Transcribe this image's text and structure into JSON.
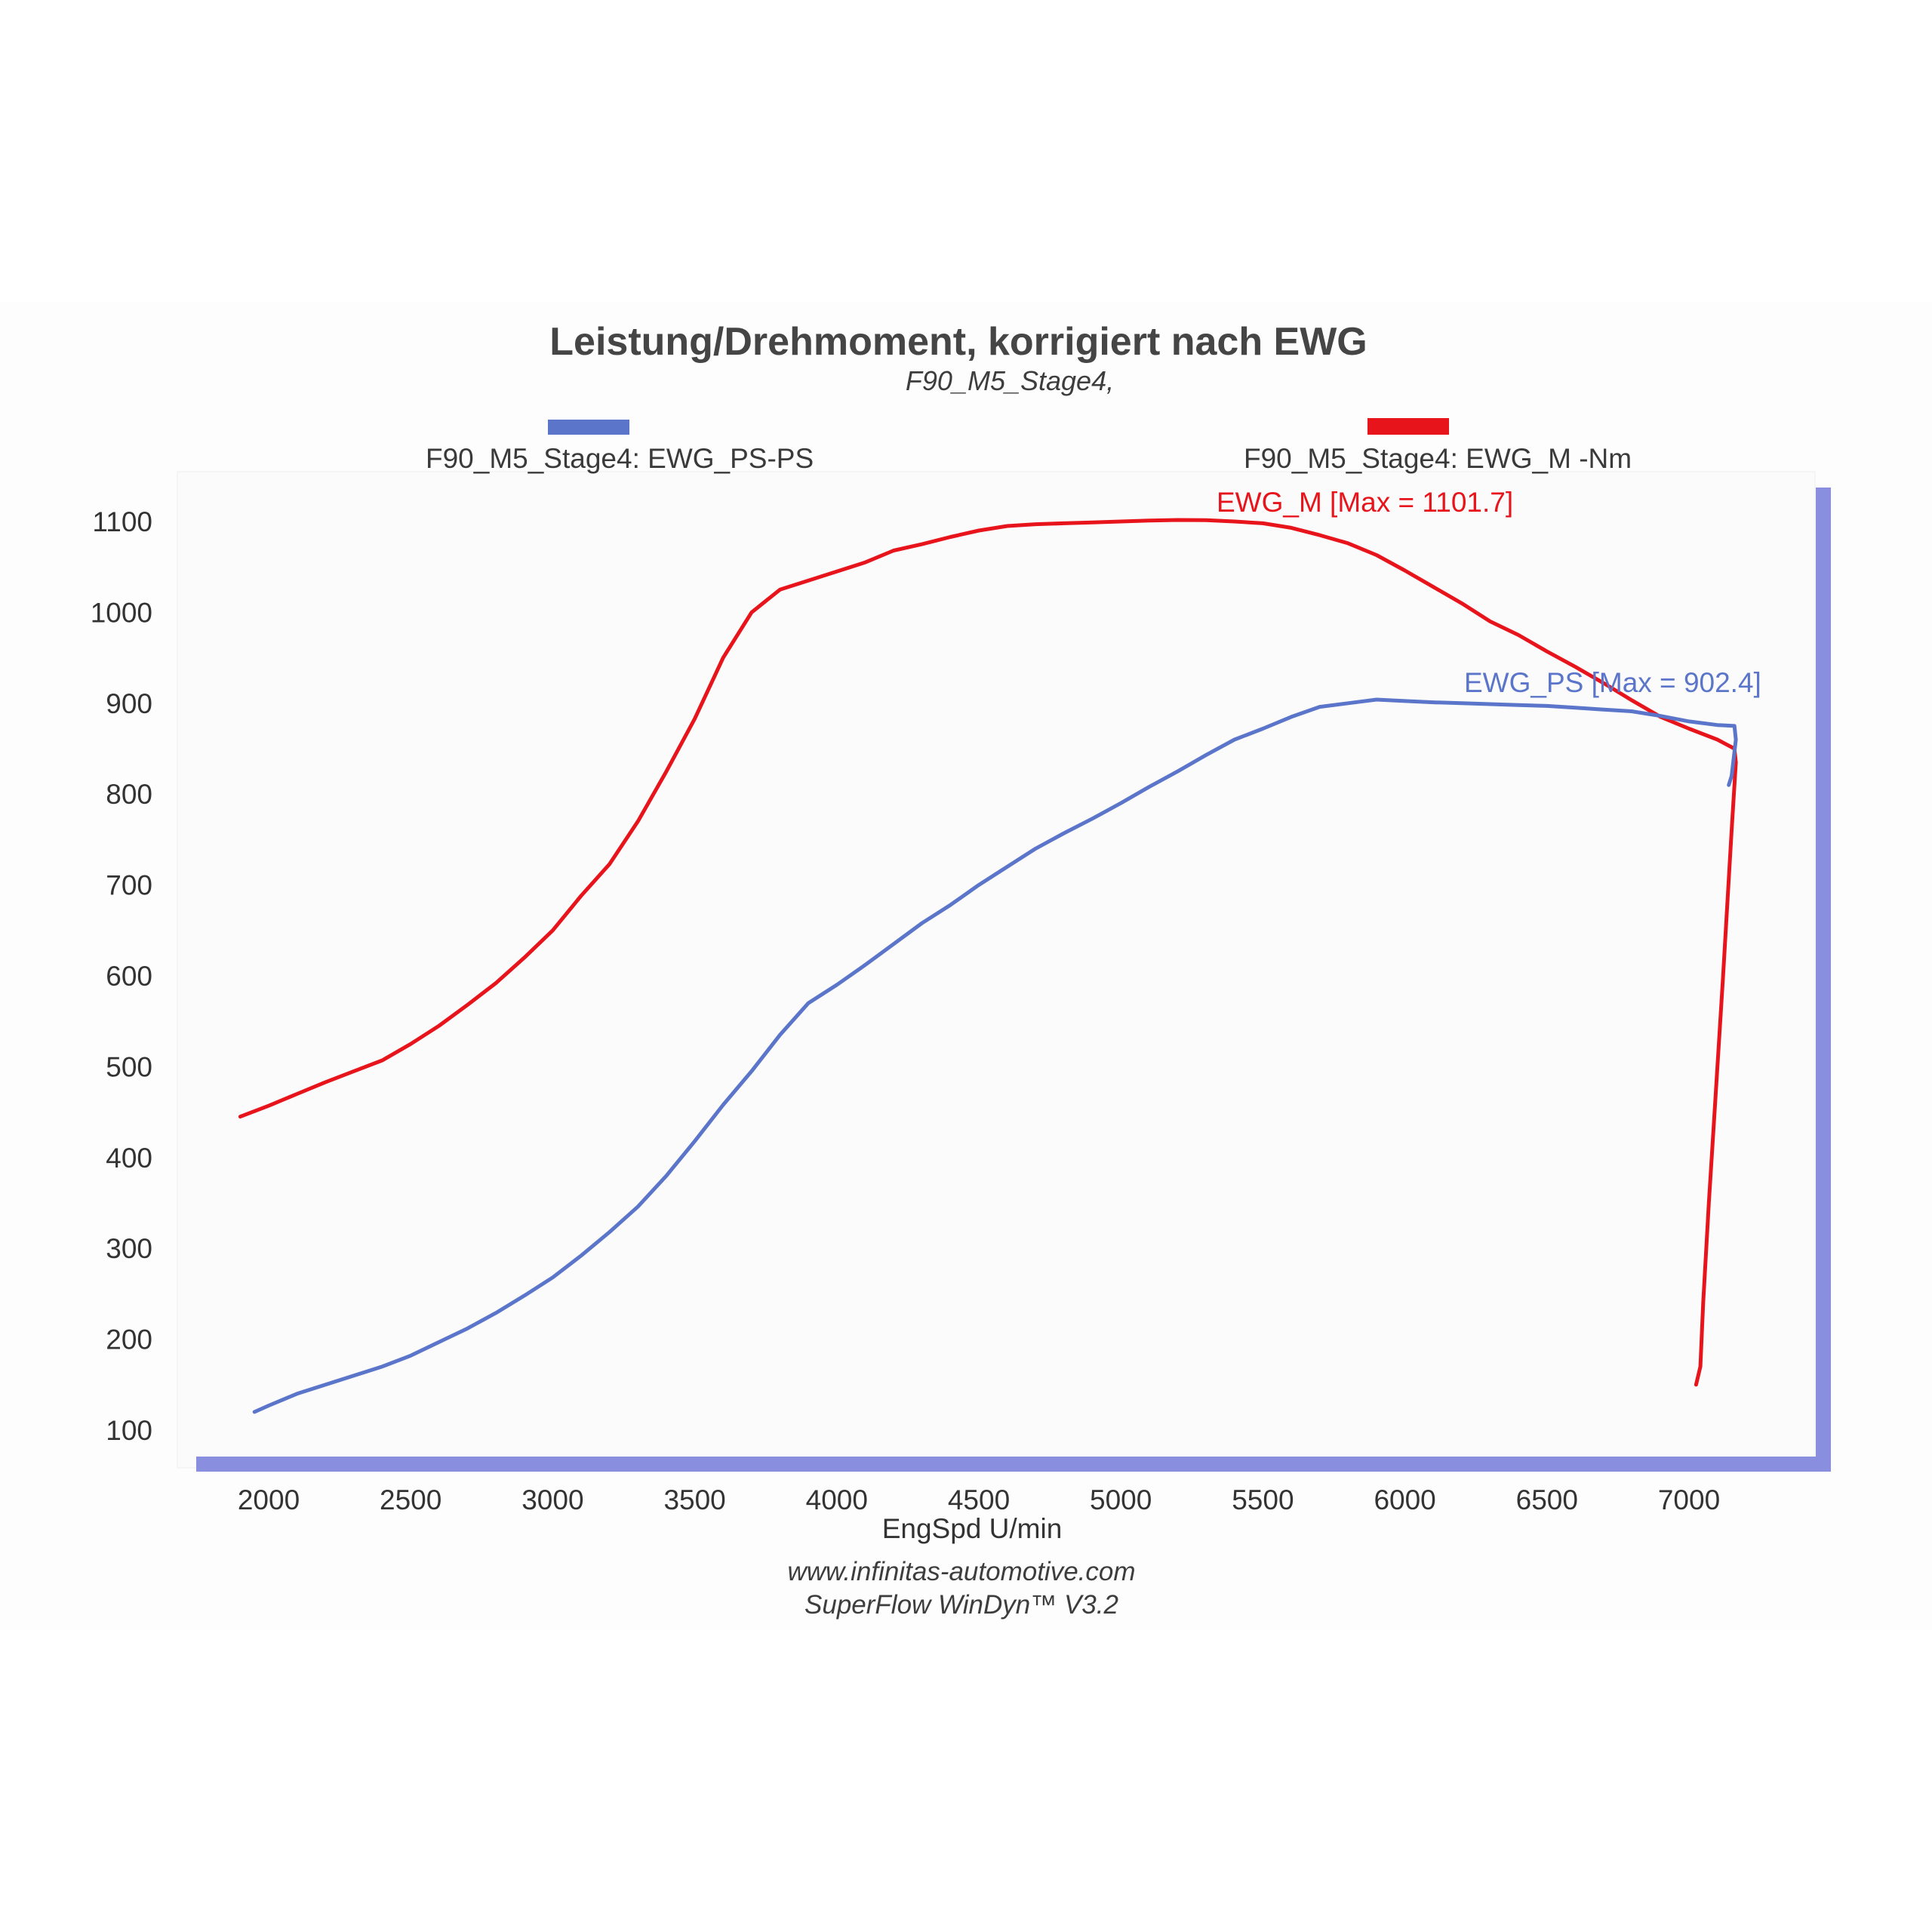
{
  "colors": {
    "power": "#5a75c9",
    "torque": "#e8141b",
    "axis_bar": "#8a8ede",
    "plot_bg": "#fbfbfb"
  },
  "chart_data": {
    "type": "line",
    "title": "Leistung/Drehmoment, korrigiert nach EWG",
    "subtitle": "F90_M5_Stage4,",
    "xlabel": "EngSpd U/min",
    "xlim": [
      1750,
      7500
    ],
    "ylim": [
      70,
      1120
    ],
    "x_ticks": [
      2000,
      2500,
      3000,
      3500,
      4000,
      4500,
      5000,
      5500,
      6000,
      6500,
      7000
    ],
    "y_ticks": [
      100,
      200,
      300,
      400,
      500,
      600,
      700,
      800,
      900,
      1000,
      1100
    ],
    "legend": [
      {
        "label": "F90_M5_Stage4: EWG_PS-PS",
        "series": "power"
      },
      {
        "label": "F90_M5_Stage4: EWG_M -Nm",
        "series": "torque"
      }
    ],
    "annotations": {
      "torque": "EWG_M  [Max = 1101.7]",
      "power": "EWG_PS [Max = 902.4]"
    },
    "series": [
      {
        "name": "EWG_M",
        "key": "torque",
        "x": [
          1900,
          2000,
          2100,
          2200,
          2300,
          2400,
          2500,
          2600,
          2700,
          2800,
          2900,
          3000,
          3100,
          3200,
          3300,
          3400,
          3500,
          3600,
          3700,
          3800,
          3900,
          4000,
          4100,
          4200,
          4300,
          4400,
          4500,
          4600,
          4700,
          4800,
          4900,
          5000,
          5100,
          5200,
          5300,
          5400,
          5500,
          5600,
          5700,
          5800,
          5900,
          6000,
          6100,
          6200,
          6300,
          6400,
          6500,
          6600,
          6700,
          6800,
          6900,
          7000,
          7100,
          7160,
          7165,
          7150,
          7120,
          7090,
          7070,
          7050,
          7040,
          7025
        ],
        "values": [
          445,
          457,
          470,
          483,
          495,
          507,
          525,
          545,
          568,
          592,
          620,
          650,
          688,
          723,
          770,
          825,
          883,
          950,
          1000,
          1025,
          1035,
          1045,
          1055,
          1068,
          1075,
          1083,
          1090,
          1095,
          1097,
          1098,
          1099,
          1100,
          1101,
          1101.7,
          1101.5,
          1100,
          1098,
          1093,
          1085,
          1076,
          1063,
          1046,
          1028,
          1010,
          990,
          975,
          957,
          940,
          922,
          903,
          885,
          872,
          860,
          850,
          835,
          760,
          600,
          450,
          350,
          240,
          170,
          150
        ]
      },
      {
        "name": "EWG_PS",
        "key": "power",
        "x": [
          1950,
          2000,
          2100,
          2200,
          2300,
          2400,
          2500,
          2600,
          2700,
          2800,
          2900,
          3000,
          3100,
          3200,
          3300,
          3400,
          3500,
          3600,
          3700,
          3800,
          3900,
          4000,
          4100,
          4200,
          4300,
          4400,
          4500,
          4600,
          4700,
          4800,
          4900,
          5000,
          5100,
          5200,
          5300,
          5400,
          5500,
          5600,
          5700,
          5800,
          5900,
          6000,
          6100,
          6200,
          6300,
          6400,
          6500,
          6600,
          6700,
          6800,
          6900,
          7000,
          7100,
          7160,
          7165,
          7150,
          7140
        ],
        "values": [
          120,
          127,
          140,
          150,
          160,
          170,
          182,
          197,
          212,
          229,
          248,
          268,
          292,
          318,
          346,
          380,
          418,
          458,
          495,
          535,
          570,
          590,
          612,
          635,
          658,
          678,
          700,
          720,
          740,
          757,
          773,
          790,
          808,
          825,
          843,
          860,
          872,
          885,
          896,
          900,
          904,
          902.4,
          901,
          900,
          899,
          898,
          897,
          895,
          893,
          891,
          886,
          880,
          876,
          875,
          860,
          820,
          810
        ]
      }
    ]
  }
}
